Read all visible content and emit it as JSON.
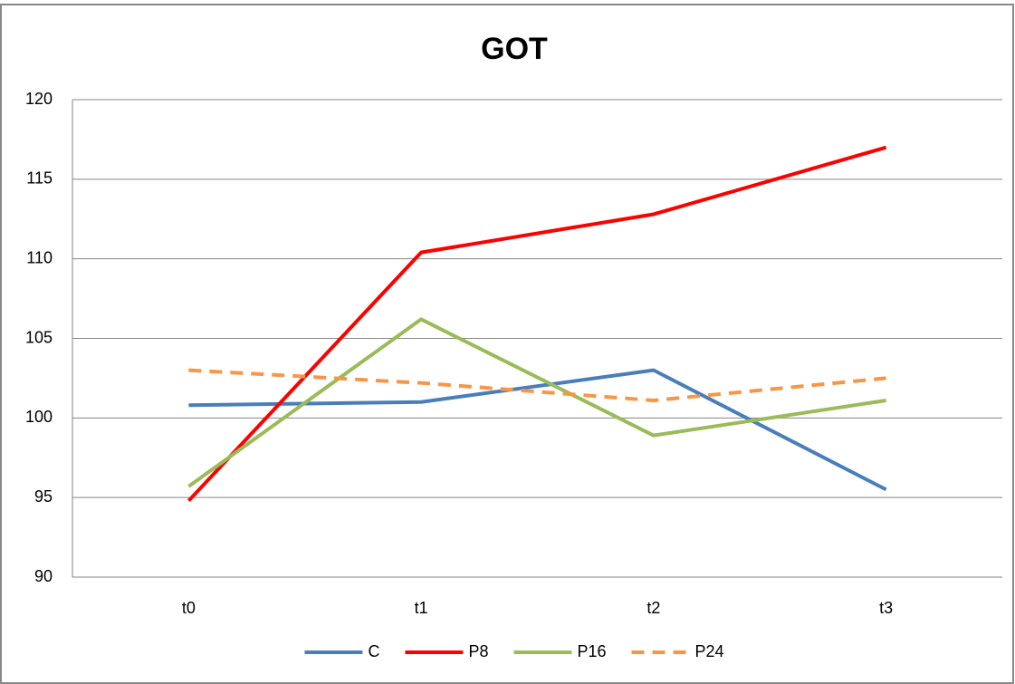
{
  "chart_data": {
    "type": "line",
    "title": "GOT",
    "categories": [
      "t0",
      "t1",
      "t2",
      "t3"
    ],
    "series": [
      {
        "name": "C",
        "color": "#4a7ebb",
        "dashed": false,
        "values": [
          100.8,
          101.0,
          103.0,
          95.5
        ]
      },
      {
        "name": "P8",
        "color": "#ff0000",
        "dashed": false,
        "values": [
          94.8,
          110.4,
          112.8,
          117.0
        ]
      },
      {
        "name": "P16",
        "color": "#9bbb59",
        "dashed": false,
        "values": [
          95.7,
          106.2,
          98.9,
          101.1
        ]
      },
      {
        "name": "P24",
        "color": "#f79646",
        "dashed": true,
        "values": [
          103.0,
          102.2,
          101.1,
          102.5
        ]
      }
    ],
    "ylim": [
      90,
      120
    ],
    "yticks": [
      90,
      95,
      100,
      105,
      110,
      115,
      120
    ],
    "grid": true,
    "legend": "bottom"
  }
}
